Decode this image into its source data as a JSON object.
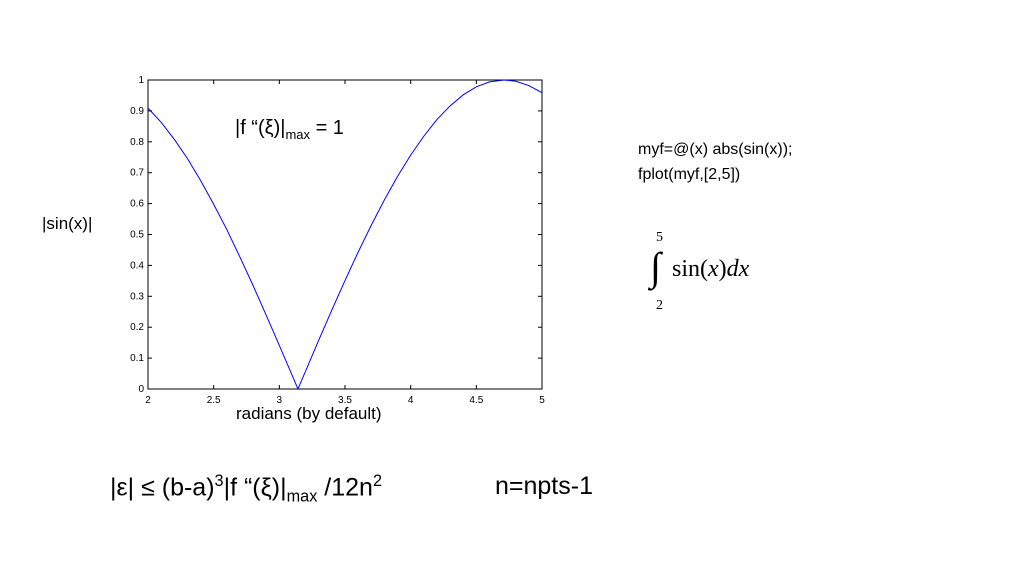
{
  "chart_data": {
    "type": "line",
    "x": [
      2.0,
      2.1,
      2.2,
      2.3,
      2.4,
      2.5,
      2.6,
      2.7,
      2.8,
      2.9,
      3.0,
      3.1,
      3.1416,
      3.2,
      3.3,
      3.4,
      3.5,
      3.6,
      3.7,
      3.8,
      3.9,
      4.0,
      4.1,
      4.2,
      4.3,
      4.4,
      4.5,
      4.6,
      4.712,
      4.8,
      4.9,
      5.0
    ],
    "values": [
      0.909,
      0.863,
      0.808,
      0.746,
      0.675,
      0.598,
      0.516,
      0.427,
      0.335,
      0.239,
      0.141,
      0.042,
      0,
      0.058,
      0.158,
      0.256,
      0.351,
      0.443,
      0.53,
      0.612,
      0.688,
      0.757,
      0.818,
      0.872,
      0.916,
      0.952,
      0.978,
      0.994,
      1,
      0.996,
      0.982,
      0.959
    ],
    "color": "#0000ff",
    "xlim": [
      2,
      5
    ],
    "xticks": [
      2,
      2.5,
      3,
      3.5,
      4,
      4.5,
      5
    ],
    "ylim": [
      0,
      1
    ],
    "yticks": [
      0,
      0.1,
      0.2,
      0.3,
      0.4,
      0.5,
      0.6,
      0.7,
      0.8,
      0.9,
      1
    ],
    "x_label": "radians (by default)",
    "y_label": "|sin(x)|",
    "annotation": {
      "main": "|f “(ξ)|",
      "sub": "max",
      "rest": " = 1"
    }
  },
  "code": [
    "myf=@(x) abs(sin(x));",
    "fplot(myf,[2,5])"
  ],
  "integral": {
    "upper": "5",
    "lower": "2",
    "sign": "∫",
    "parts": [
      "sin(",
      "x",
      ")",
      "dx"
    ]
  },
  "error_bound": {
    "parts": [
      "|ε| ≤ (b-a)",
      "3",
      "|f “(ξ)|",
      "max",
      " /12n",
      "2"
    ]
  },
  "n_def": "n=npts-1"
}
